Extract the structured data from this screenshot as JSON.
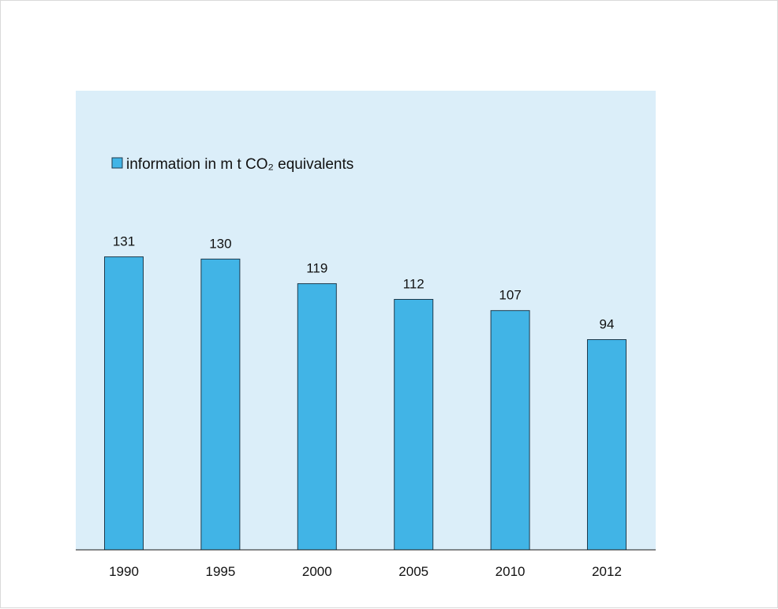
{
  "colors": {
    "plot_background": "#dbeef9",
    "bar_fill": "#41b4e6",
    "bar_stroke": "#1f3a4d",
    "axis": "#1a1a1a",
    "text": "#111111"
  },
  "chart_data": {
    "type": "bar",
    "categories": [
      "1990",
      "1995",
      "2000",
      "2005",
      "2010",
      "2012"
    ],
    "series": [
      {
        "name": "information in m t CO₂ equivalents",
        "values": [
          131,
          130,
          119,
          112,
          107,
          94
        ]
      }
    ],
    "data_labels": [
      "131",
      "130",
      "119",
      "112",
      "107",
      "94"
    ],
    "title": "",
    "xlabel": "",
    "ylabel": "",
    "y_axis_visible": false,
    "grid": false,
    "legend_position": "top-left"
  }
}
